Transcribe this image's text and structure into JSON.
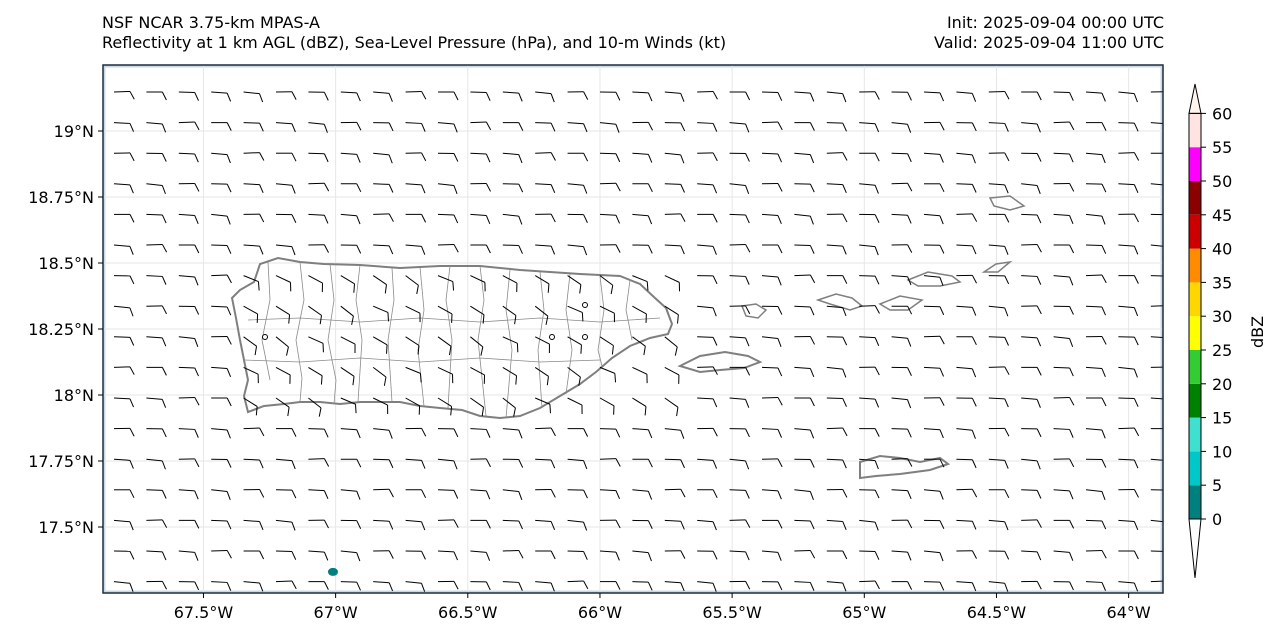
{
  "header": {
    "model_title": "NSF NCAR 3.75-km MPAS-A",
    "fields_title": "Reflectivity at 1 km AGL (dBZ), Sea-Level Pressure (hPa), and 10-m Winds (kt)",
    "init_label": "Init: 2025-09-04 00:00 UTC",
    "valid_label": "Valid: 2025-09-04 11:00 UTC"
  },
  "axes": {
    "lon_ticks": [
      "67.5°W",
      "67°W",
      "66.5°W",
      "66°W",
      "65.5°W",
      "65°W",
      "64.5°W",
      "64°W"
    ],
    "lon_tick_values": [
      -67.5,
      -67.0,
      -66.5,
      -66.0,
      -65.5,
      -65.0,
      -64.5,
      -64.0
    ],
    "lat_ticks": [
      "19°N",
      "18.75°N",
      "18.5°N",
      "18.25°N",
      "18°N",
      "17.75°N",
      "17.5°N"
    ],
    "lat_tick_values": [
      19.0,
      18.75,
      18.5,
      18.25,
      18.0,
      17.75,
      17.5
    ],
    "lon_range": [
      -67.88,
      -63.87
    ],
    "lat_range": [
      17.25,
      19.25
    ],
    "grid": true
  },
  "colorbar": {
    "label": "dBZ",
    "tick_labels": [
      "0",
      "5",
      "10",
      "15",
      "20",
      "25",
      "30",
      "35",
      "40",
      "45",
      "50",
      "55",
      "60"
    ],
    "bins": [
      0,
      5,
      10,
      15,
      20,
      25,
      30,
      35,
      40,
      45,
      50,
      55,
      60
    ],
    "colors": [
      "#007f7f",
      "#00c8c8",
      "#40e0d0",
      "#008000",
      "#32cd32",
      "#ffff00",
      "#ffd700",
      "#ff8c00",
      "#cc0000",
      "#8b0000",
      "#ff00ff",
      "#ffe4e1"
    ],
    "extend": "both",
    "under_color": "#ffffff",
    "over_color": "#fff5ee"
  },
  "wind": {
    "prevailing": "easterly",
    "speed_kt": 10,
    "barb_color": "#000000"
  },
  "reflectivity_echoes": [
    {
      "lon": -67.01,
      "lat": 17.33,
      "dbz": 3
    }
  ],
  "map_colors": {
    "coastline": "#7f7f7f",
    "frame": "#1f2d3d",
    "ocean_edge": "#c8d8e8"
  }
}
